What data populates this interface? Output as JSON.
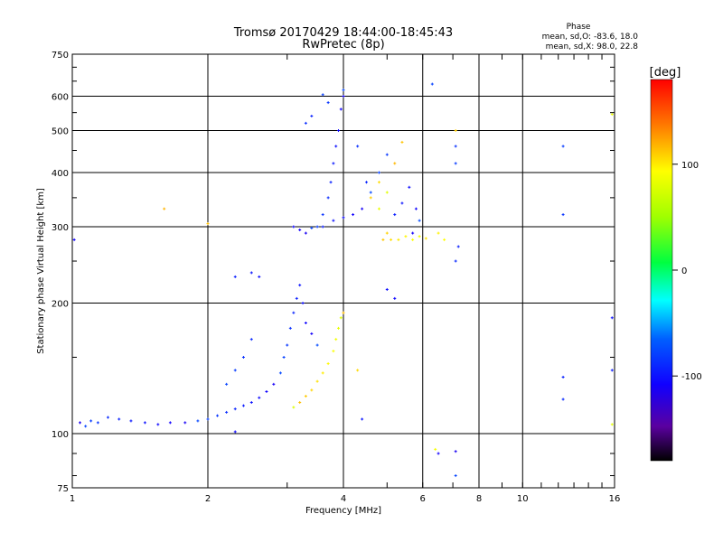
{
  "chart_data": {
    "type": "scatter",
    "title": "Tromsø 20170429 18:44:00-18:45:43",
    "subtitle": "RwPretec (8p)",
    "xlabel": "Frequency [MHz]",
    "ylabel": "Stationary phase Virtual Height [km]",
    "x_scale": "log",
    "y_scale": "log",
    "xlim": [
      1,
      16
    ],
    "ylim": [
      75,
      750
    ],
    "x_ticks": [
      1,
      2,
      4,
      6,
      8,
      10,
      16
    ],
    "y_ticks": [
      75,
      100,
      200,
      300,
      400,
      500,
      600,
      750
    ],
    "grid": true,
    "colorbar": {
      "label": "[deg]",
      "range": [
        -180,
        180
      ],
      "ticks": [
        100,
        0,
        -100
      ]
    },
    "stats_title": "Phase",
    "stats_lines": [
      "mean, sd,O: -83.6, 18.0",
      "mean, sd,X:  98.0, 22.8"
    ],
    "series": [
      {
        "role": "O-mode echoes",
        "phase": -90,
        "points": [
          [
            1.04,
            106
          ],
          [
            1.07,
            104
          ],
          [
            1.1,
            107
          ],
          [
            1.14,
            106
          ],
          [
            1.2,
            109
          ],
          [
            1.27,
            108
          ],
          [
            1.35,
            107
          ],
          [
            1.45,
            106
          ],
          [
            1.55,
            105
          ],
          [
            1.65,
            106
          ],
          [
            1.78,
            106
          ],
          [
            1.9,
            107
          ],
          [
            2.0,
            108
          ],
          [
            2.1,
            110
          ],
          [
            2.2,
            112
          ],
          [
            2.3,
            114
          ],
          [
            2.4,
            116
          ],
          [
            2.5,
            118
          ],
          [
            2.6,
            121
          ],
          [
            2.7,
            125
          ],
          [
            2.8,
            130
          ],
          [
            2.9,
            138
          ],
          [
            2.95,
            150
          ],
          [
            3.0,
            160
          ],
          [
            3.05,
            175
          ],
          [
            3.1,
            190
          ],
          [
            3.15,
            205
          ],
          [
            3.2,
            220
          ],
          [
            3.25,
            200
          ],
          [
            3.3,
            180
          ],
          [
            3.4,
            170
          ],
          [
            3.5,
            160
          ],
          [
            2.2,
            130
          ],
          [
            2.3,
            140
          ],
          [
            2.4,
            150
          ],
          [
            2.5,
            165
          ],
          [
            2.3,
            230
          ],
          [
            2.5,
            235
          ],
          [
            2.6,
            230
          ],
          [
            3.1,
            300
          ],
          [
            3.2,
            295
          ],
          [
            3.3,
            290
          ],
          [
            3.4,
            298
          ],
          [
            3.5,
            300
          ],
          [
            3.6,
            320
          ],
          [
            3.7,
            350
          ],
          [
            3.75,
            380
          ],
          [
            3.8,
            420
          ],
          [
            3.85,
            460
          ],
          [
            3.9,
            500
          ],
          [
            3.95,
            560
          ],
          [
            4.0,
            600
          ],
          [
            4.0,
            620
          ],
          [
            3.6,
            605
          ],
          [
            3.7,
            580
          ],
          [
            3.3,
            520
          ],
          [
            3.4,
            540
          ],
          [
            3.6,
            300
          ],
          [
            3.8,
            310
          ],
          [
            4.0,
            315
          ],
          [
            4.2,
            320
          ],
          [
            4.4,
            330
          ],
          [
            4.6,
            360
          ],
          [
            4.8,
            400
          ],
          [
            5.0,
            440
          ],
          [
            4.3,
            460
          ],
          [
            4.5,
            380
          ],
          [
            5.2,
            320
          ],
          [
            5.4,
            340
          ],
          [
            5.6,
            370
          ],
          [
            5.8,
            330
          ],
          [
            5.7,
            290
          ],
          [
            5.9,
            310
          ],
          [
            6.3,
            640
          ],
          [
            7.1,
            420
          ],
          [
            7.1,
            460
          ],
          [
            7.1,
            250
          ],
          [
            7.2,
            270
          ],
          [
            4.4,
            108
          ],
          [
            5.0,
            215
          ],
          [
            5.2,
            205
          ],
          [
            6.5,
            90
          ],
          [
            7.1,
            91
          ],
          [
            7.1,
            80
          ],
          [
            12.3,
            460
          ],
          [
            12.3,
            320
          ],
          [
            12.3,
            120
          ],
          [
            12.3,
            135
          ],
          [
            15.8,
            140
          ],
          [
            15.8,
            185
          ],
          [
            2.3,
            101
          ],
          [
            1.01,
            280
          ]
        ]
      },
      {
        "role": "X-mode echoes",
        "phase": 100,
        "points": [
          [
            3.1,
            115
          ],
          [
            3.2,
            118
          ],
          [
            3.3,
            122
          ],
          [
            3.4,
            126
          ],
          [
            3.5,
            132
          ],
          [
            3.6,
            138
          ],
          [
            3.7,
            145
          ],
          [
            3.8,
            155
          ],
          [
            3.85,
            165
          ],
          [
            3.9,
            175
          ],
          [
            3.95,
            185
          ],
          [
            4.0,
            190
          ],
          [
            4.9,
            280
          ],
          [
            5.0,
            290
          ],
          [
            5.1,
            280
          ],
          [
            5.3,
            280
          ],
          [
            5.5,
            285
          ],
          [
            5.7,
            280
          ],
          [
            5.9,
            285
          ],
          [
            4.8,
            330
          ],
          [
            5.0,
            360
          ],
          [
            5.2,
            420
          ],
          [
            5.4,
            470
          ],
          [
            4.6,
            350
          ],
          [
            4.8,
            380
          ],
          [
            6.1,
            282
          ],
          [
            6.5,
            290
          ],
          [
            6.7,
            280
          ],
          [
            6.4,
            92
          ],
          [
            15.8,
            545
          ],
          [
            15.8,
            105
          ],
          [
            1.6,
            330
          ],
          [
            2.0,
            305
          ],
          [
            7.1,
            500
          ],
          [
            4.3,
            140
          ]
        ]
      }
    ]
  }
}
